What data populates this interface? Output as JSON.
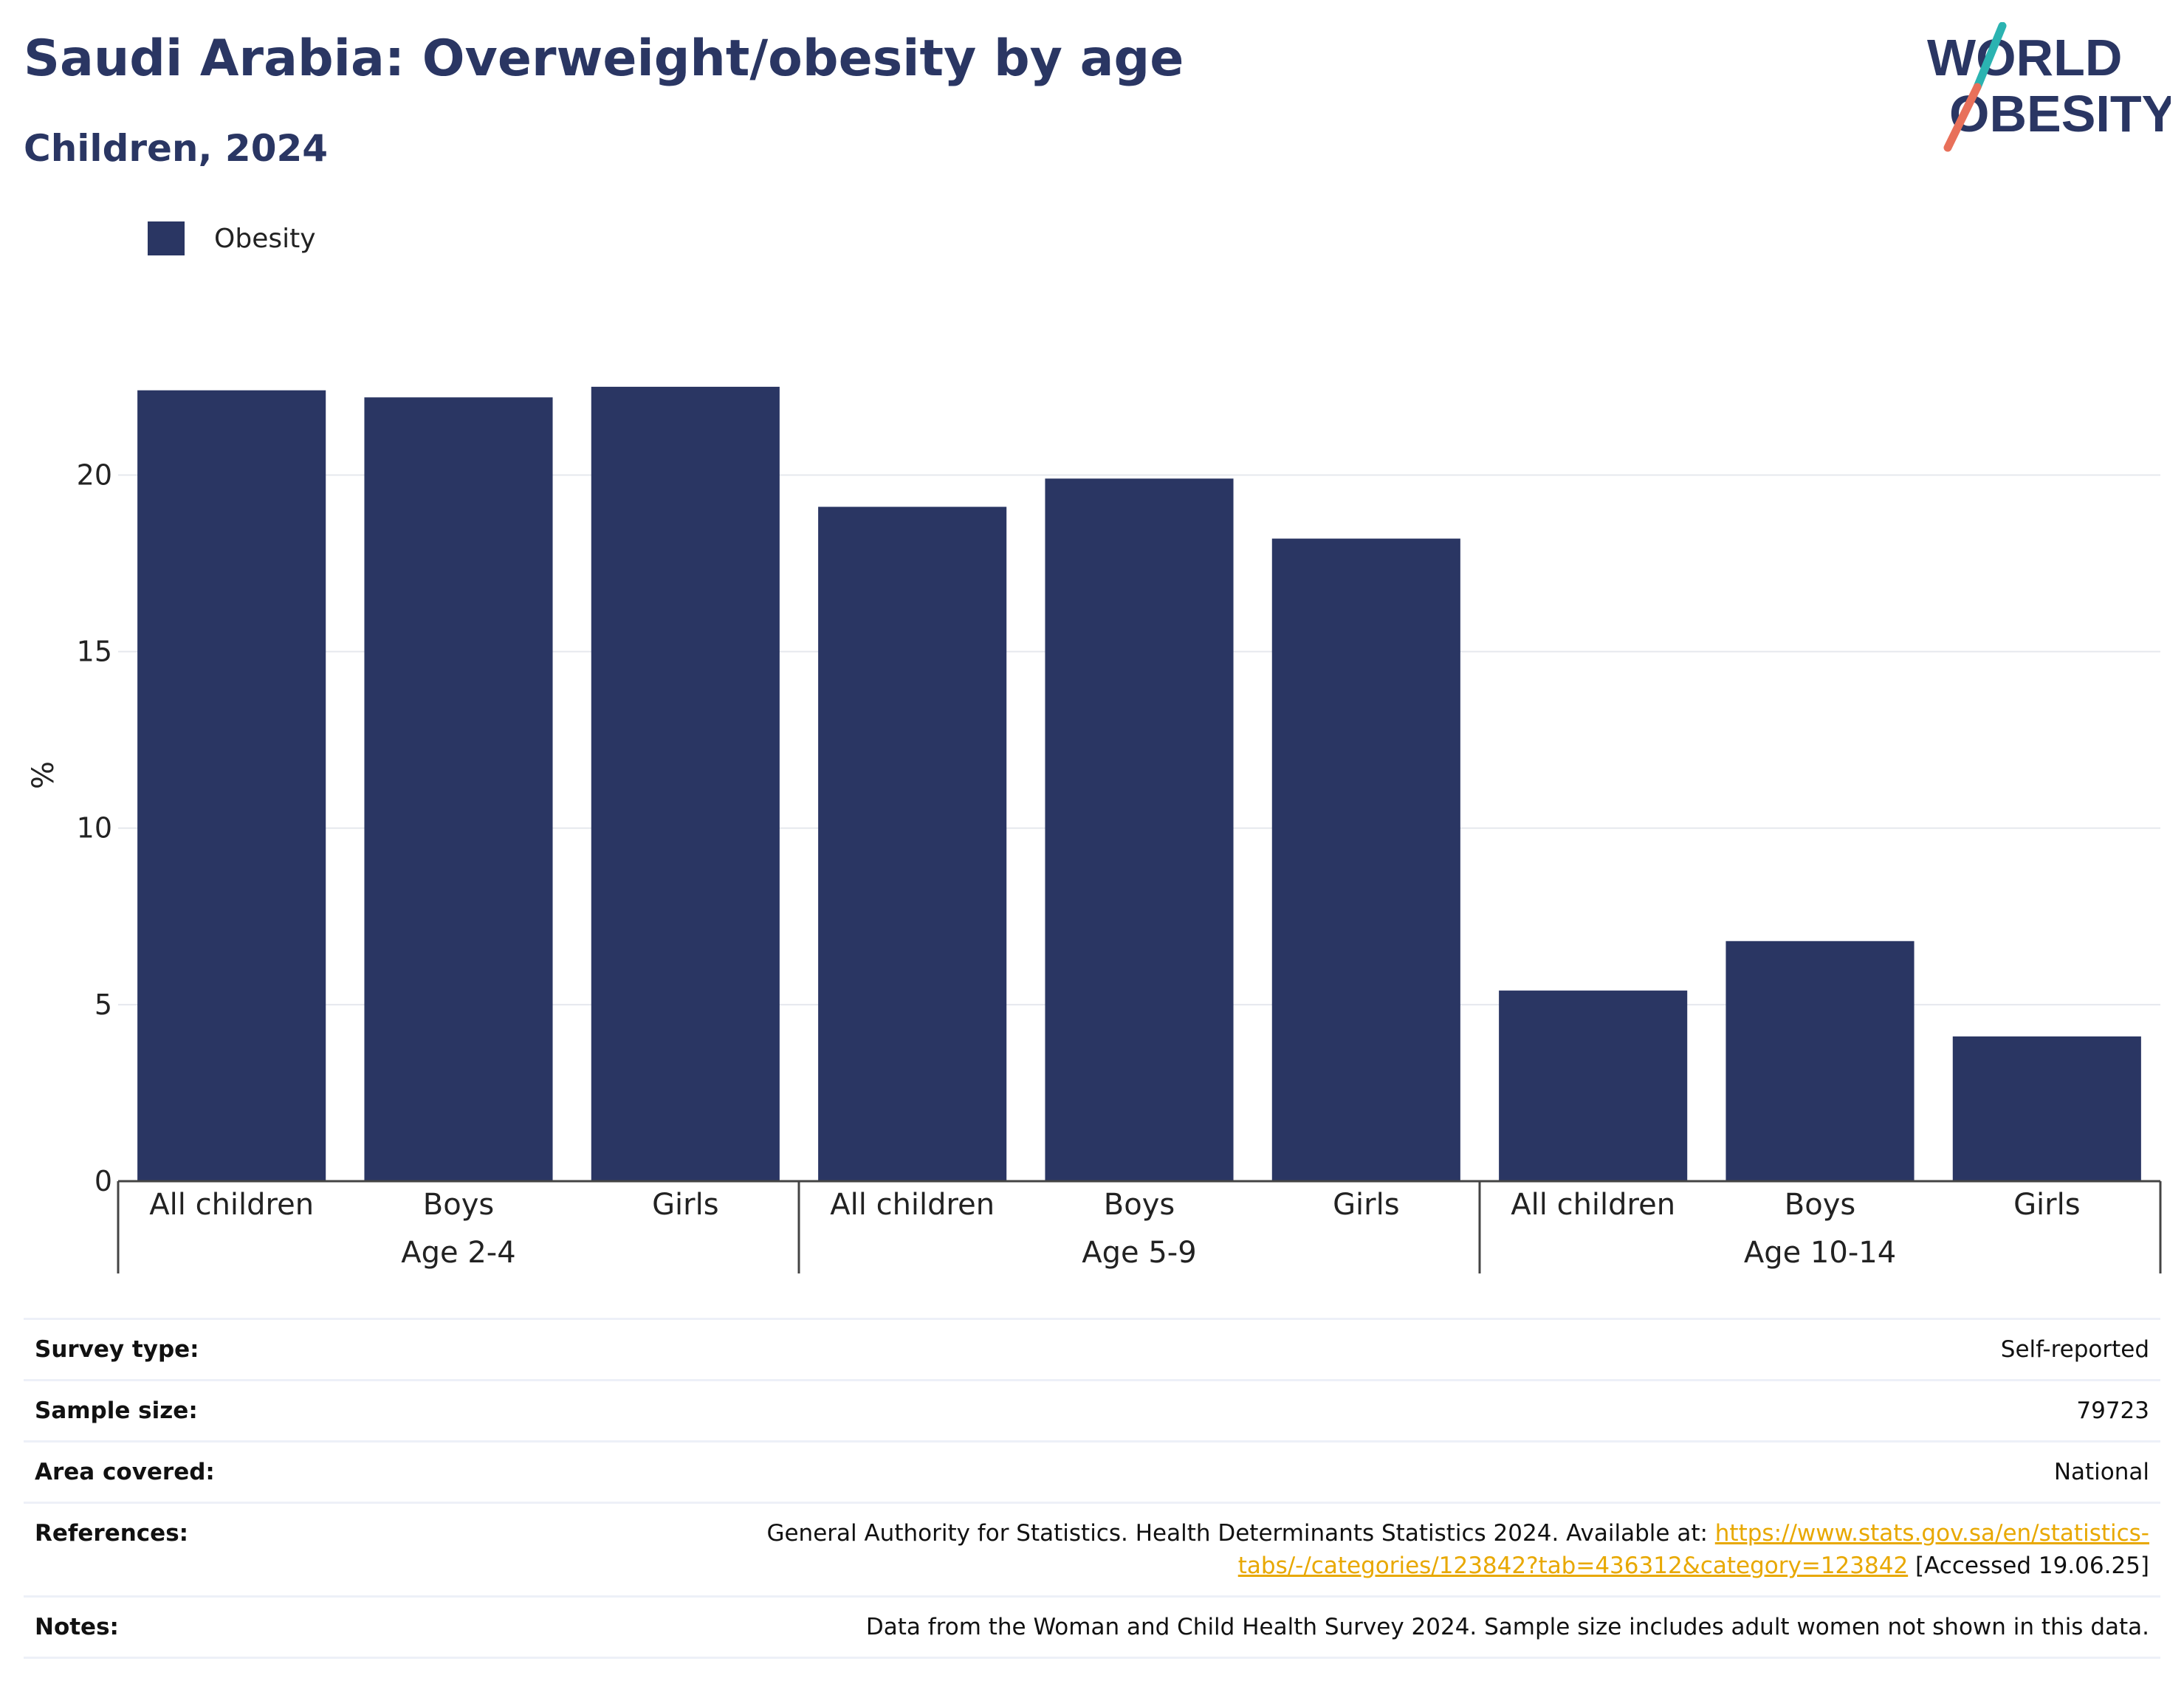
{
  "header": {
    "title": "Saudi Arabia: Overweight/obesity by age",
    "subtitle": "Children, 2024"
  },
  "logo": {
    "line1": "WORLD",
    "line2": "OBESITY",
    "colors": {
      "text": "#2a3663",
      "slash_top": "#2bb3b1",
      "slash_bottom": "#e8705a"
    }
  },
  "colors": {
    "bar": "#2a3663",
    "grid": "#e6e8ee",
    "axis": "#444444",
    "link": "#e8a800"
  },
  "chart_data": {
    "type": "bar",
    "ylabel": "%",
    "ylim": [
      0,
      23
    ],
    "yticks": [
      0,
      5,
      10,
      15,
      20
    ],
    "grid": true,
    "legend_position": "top-left",
    "groups": [
      {
        "label": "Age 2-4",
        "categories": [
          "All children",
          "Boys",
          "Girls"
        ]
      },
      {
        "label": "Age 5-9",
        "categories": [
          "All children",
          "Boys",
          "Girls"
        ]
      },
      {
        "label": "Age 10-14",
        "categories": [
          "All children",
          "Boys",
          "Girls"
        ]
      }
    ],
    "series": [
      {
        "name": "Obesity",
        "values": [
          22.4,
          22.2,
          22.5,
          19.1,
          19.9,
          18.2,
          5.4,
          6.8,
          4.1
        ]
      }
    ]
  },
  "info": [
    {
      "key": "Survey type:",
      "value": "Self-reported"
    },
    {
      "key": "Sample size:",
      "value": "79723"
    },
    {
      "key": "Area covered:",
      "value": "National"
    },
    {
      "key": "References:",
      "value_prefix": "General Authority for Statistics. Health Determinants Statistics 2024. Available at: ",
      "link": "https://www.stats.gov.sa/en/statistics-tabs/-/categories/123842?tab=436312&category=123842",
      "value_suffix": " [Accessed 19.06.25]"
    },
    {
      "key": "Notes:",
      "value": "Data from the Woman and Child Health Survey 2024. Sample size includes adult women not shown in this data."
    }
  ]
}
